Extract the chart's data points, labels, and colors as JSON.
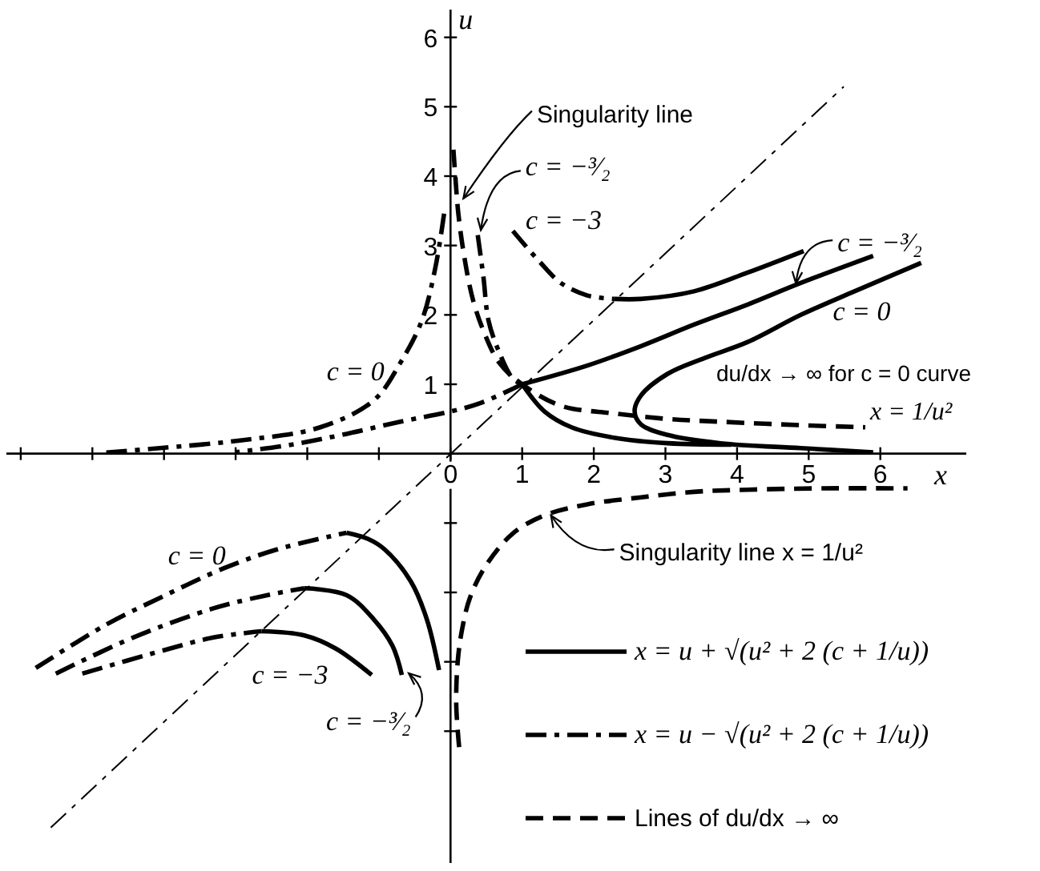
{
  "chart_data": {
    "type": "line",
    "xlabel": "x",
    "ylabel": "u",
    "xlim": [
      -6.2,
      7.2
    ],
    "ylim": [
      -5.9,
      6.4
    ],
    "xticks": [
      {
        "value": -6,
        "label": null
      },
      {
        "value": -5,
        "label": null
      },
      {
        "value": -4,
        "label": null
      },
      {
        "value": -3,
        "label": null
      },
      {
        "value": -2,
        "label": null
      },
      {
        "value": -1,
        "label": null
      },
      0,
      1,
      2,
      3,
      4,
      5,
      6
    ],
    "yticks": [
      {
        "value": -4,
        "label": null
      },
      {
        "value": -3,
        "label": null
      },
      {
        "value": -2,
        "label": null
      },
      {
        "value": -1,
        "label": null
      },
      1,
      2,
      3,
      4,
      5,
      6
    ],
    "legend": "bottom right",
    "series": [
      {
        "name": "x = u + √(u² + 2 (c + 1/u))",
        "color": "#000000",
        "line_style": "solid",
        "x": [
          2.28,
          2.66,
          3.4,
          4.15,
          4.93,
          null,
          1.0,
          1.91,
          2.66,
          3.4,
          4.15,
          4.89,
          5.9,
          null,
          1.0,
          1.31,
          1.69,
          2.28,
          3.03,
          3.92,
          null,
          6.57,
          5.64,
          4.89,
          4.15,
          3.55,
          3.03,
          2.66,
          2.57,
          2.66,
          3.03,
          3.77,
          4.89,
          5.9,
          null,
          -1.45,
          -1.15,
          -0.92,
          -0.55,
          -0.33,
          -0.16,
          null,
          -2.04,
          -1.45,
          -1.07,
          -0.81,
          -0.68,
          null,
          -2.64,
          -2.04,
          -1.6,
          -1.1
        ],
        "values": [
          2.23,
          2.23,
          2.34,
          2.61,
          2.92,
          null,
          1.0,
          1.27,
          1.55,
          1.86,
          2.15,
          2.46,
          2.85,
          null,
          1.0,
          0.61,
          0.38,
          0.23,
          0.15,
          0.13,
          null,
          2.75,
          2.34,
          2.0,
          1.61,
          1.38,
          1.15,
          0.84,
          0.61,
          0.42,
          0.27,
          0.15,
          0.08,
          0.02,
          null,
          -1.14,
          -1.23,
          -1.38,
          -1.85,
          -2.39,
          -3.12,
          null,
          -1.94,
          -2.04,
          -2.39,
          -2.77,
          -3.19,
          null,
          -2.56,
          -2.62,
          -2.81,
          -3.19
        ]
      },
      {
        "name": "x = u − √(u² + 2 (c + 1/u))",
        "color": "#000000",
        "line_style": "dashdot",
        "x": [
          0.87,
          1.24,
          1.54,
          1.91,
          2.28,
          null,
          0.38,
          0.46,
          0.53,
          0.68,
          0.87,
          1.0,
          null,
          1.0,
          0.42,
          0.01,
          -0.7,
          -1.52,
          -2.27,
          -3.01,
          null,
          -0.09,
          -0.21,
          -0.4,
          -0.7,
          -1.07,
          -1.82,
          -2.94,
          -4.06,
          -4.88,
          null,
          -5.79,
          -4.8,
          -4.06,
          -3.16,
          -2.42,
          -1.45,
          null,
          -5.51,
          -4.43,
          -3.31,
          -2.56,
          -2.04,
          null,
          -5.14,
          -4.06,
          -3.31,
          -2.64
        ],
        "values": [
          3.21,
          2.77,
          2.46,
          2.28,
          2.23,
          null,
          3.15,
          2.54,
          1.92,
          1.46,
          1.08,
          1.0,
          null,
          1.0,
          0.73,
          0.61,
          0.46,
          0.27,
          0.12,
          0.02,
          null,
          3.46,
          2.69,
          1.92,
          1.31,
          0.77,
          0.38,
          0.19,
          0.08,
          0.01,
          null,
          -3.09,
          -2.46,
          -2.08,
          -1.65,
          -1.38,
          -1.14,
          null,
          -3.17,
          -2.65,
          -2.23,
          -2.04,
          -1.94,
          null,
          -3.17,
          -2.85,
          -2.65,
          -2.56
        ]
      },
      {
        "name": "Lines of du/dx → ∞",
        "color": "#000000",
        "line_style": "dashed",
        "x": [
          0.04,
          0.07,
          0.11,
          0.19,
          0.31,
          0.46,
          0.68,
          1.0,
          1.54,
          2.28,
          3.03,
          3.77,
          4.89,
          5.79,
          null,
          0.12,
          0.08,
          0.1,
          0.16,
          0.27,
          0.49,
          0.87,
          1.31,
          1.91,
          2.66,
          3.4,
          4.15,
          5.19,
          6.38
        ],
        "values": [
          4.38,
          3.95,
          3.45,
          2.85,
          2.23,
          1.77,
          1.31,
          1.0,
          0.69,
          0.58,
          0.5,
          0.46,
          0.41,
          0.38,
          null,
          -4.23,
          -3.62,
          -3.0,
          -2.54,
          -2.08,
          -1.62,
          -1.15,
          -0.89,
          -0.73,
          -0.63,
          -0.55,
          -0.52,
          -0.5,
          -0.5
        ]
      },
      {
        "color": "#000000",
        "line_style": "dashdot",
        "x": [
          -5.58,
          5.49
        ],
        "values": [
          -5.39,
          5.29
        ]
      }
    ],
    "annotations": [
      {
        "text": "Singularity line",
        "x": 0.13,
        "y": 3.6
      },
      {
        "text": "c = −³⁄₂",
        "x": 0.42,
        "y": 3.2
      },
      {
        "text": "c = −3",
        "x": 0.87,
        "y": 3.21
      },
      {
        "text": "c = −³⁄₂",
        "x": 4.82,
        "y": 2.43
      },
      {
        "text": "c = 0",
        "x": 5.74,
        "y": 2.38
      },
      "du/dx → ∞ for c = 0 curve",
      {
        "text": "x = 1/u²",
        "x": 5.79,
        "y": 0.38
      },
      {
        "text": "c = 0",
        "x": -0.7,
        "y": 1.31
      },
      {
        "text": "c = 0",
        "x": -3.54,
        "y": -1.83
      },
      {
        "text": "c = −3",
        "x": -2.24,
        "y": -2.6
      },
      {
        "text": "c = −³⁄₂",
        "x": -0.6,
        "y": -3.15
      },
      {
        "text": "Singularity line x = 1/u²",
        "x": 1.39,
        "y": -0.87
      }
    ]
  }
}
